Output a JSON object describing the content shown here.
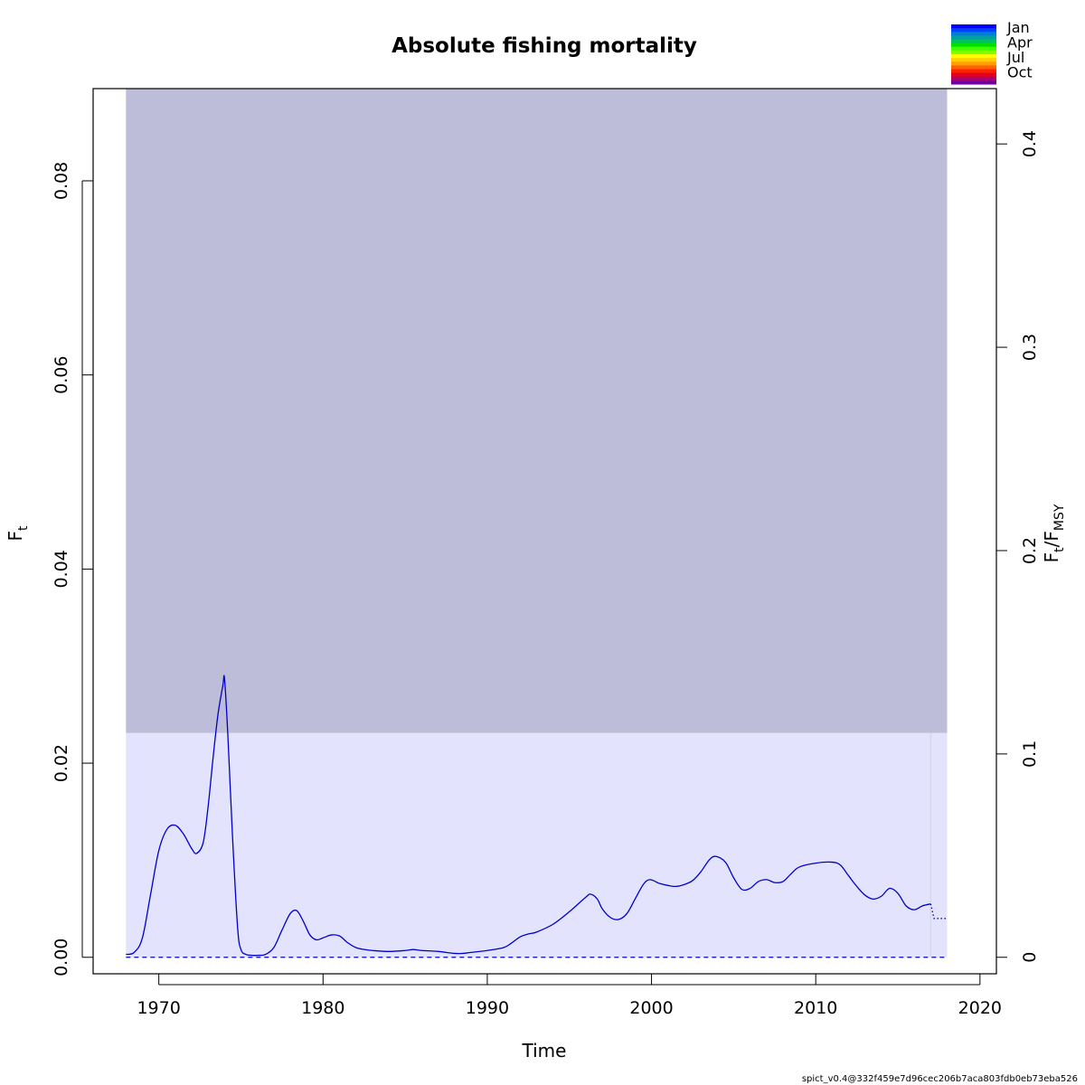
{
  "chart_data": {
    "type": "line",
    "title": "Absolute fishing mortality",
    "xlabel": "Time",
    "ylabel": "F",
    "ylabel_sub": "t",
    "ylabel_right": "F",
    "ylabel_right_sub1": "t",
    "ylabel_right_sep": "/F",
    "ylabel_right_sub2": "MSY",
    "xlim": [
      1966,
      2021
    ],
    "ylim": [
      -0.0017,
      0.0895
    ],
    "xticks": [
      1970,
      1980,
      1990,
      2000,
      2010,
      2020
    ],
    "xtick_labels": [
      "1970",
      "1980",
      "1990",
      "2000",
      "2010",
      "2020"
    ],
    "yticks": [
      0,
      0.02,
      0.04,
      0.06,
      0.08
    ],
    "ytick_labels": [
      "0.00",
      "0.02",
      "0.04",
      "0.06",
      "0.08"
    ],
    "right_ticks": [
      0,
      0.1,
      0.2,
      0.3,
      0.4
    ],
    "right_tick_labels": [
      "0",
      "0.1",
      "0.2",
      "0.3",
      "0.4"
    ],
    "right_axis_scale": 0.2095,
    "fmsy_band": {
      "x0": 1968,
      "x1": 2018,
      "lower": 0.0231,
      "upper": 0.0895,
      "color": "#bdbdd9"
    },
    "ci_band": {
      "x0": 1968,
      "x1": 2018,
      "lower": 0,
      "upper": 0.0231,
      "color": "#e3e3fd"
    },
    "fmsy_line": {
      "value": 0.0231,
      "color": "#bdbdd9"
    },
    "vertical_line": {
      "x": 2017,
      "color": "#d8d8d8"
    },
    "series": [
      {
        "style": "solid",
        "color": "#0000cd",
        "x": [
          1968,
          1968.5,
          1969,
          1969.5,
          1970,
          1970.5,
          1971,
          1971.5,
          1972,
          1972.3,
          1972.7,
          1973,
          1973.3,
          1973.6,
          1973.9,
          1974,
          1974.2,
          1974.5,
          1974.8,
          1975,
          1975.3,
          1975.7,
          1976,
          1976.5,
          1977,
          1977.5,
          1978,
          1978.4,
          1978.8,
          1979.2,
          1979.6,
          1980,
          1980.5,
          1981,
          1981.5,
          1982,
          1982.5,
          1983,
          1984,
          1985,
          1985.5,
          1986,
          1987,
          1988,
          1988.5,
          1989,
          1990,
          1991,
          1991.5,
          1992,
          1992.5,
          1993,
          1994,
          1995,
          1996,
          1996.3,
          1996.7,
          1997,
          1997.5,
          1998,
          1998.5,
          1999,
          1999.5,
          1999.9,
          2000.5,
          2001,
          2001.5,
          2002,
          2002.5,
          2003,
          2003.5,
          2003.9,
          2004.5,
          2005,
          2005.5,
          2006,
          2006.5,
          2007,
          2007.5,
          2008,
          2008.5,
          2009,
          2010,
          2011,
          2011.5,
          2012,
          2012.5,
          2013,
          2013.5,
          2014,
          2014.5,
          2015,
          2015.5,
          2016,
          2016.5,
          2017
        ],
        "y": [
          0.0003,
          0.0005,
          0.002,
          0.0065,
          0.011,
          0.0132,
          0.0136,
          0.0127,
          0.0112,
          0.0107,
          0.0118,
          0.0155,
          0.0205,
          0.025,
          0.028,
          0.0287,
          0.023,
          0.012,
          0.003,
          0.0008,
          0.0003,
          0.0002,
          0.0002,
          0.0003,
          0.001,
          0.0028,
          0.0045,
          0.0048,
          0.0037,
          0.0023,
          0.0018,
          0.002,
          0.0023,
          0.0022,
          0.0015,
          0.001,
          0.0008,
          0.0007,
          0.0006,
          0.0007,
          0.0008,
          0.0007,
          0.0006,
          0.0004,
          0.0004,
          0.0005,
          0.0007,
          0.001,
          0.0015,
          0.0021,
          0.0024,
          0.0026,
          0.0034,
          0.0047,
          0.0062,
          0.0065,
          0.006,
          0.005,
          0.0041,
          0.0039,
          0.0045,
          0.006,
          0.0075,
          0.008,
          0.0076,
          0.0074,
          0.0073,
          0.0075,
          0.0079,
          0.0088,
          0.01,
          0.0104,
          0.0098,
          0.0082,
          0.007,
          0.0071,
          0.0078,
          0.008,
          0.0077,
          0.0078,
          0.0086,
          0.0093,
          0.0097,
          0.0098,
          0.0095,
          0.0084,
          0.0073,
          0.0064,
          0.006,
          0.0063,
          0.0071,
          0.0066,
          0.0053,
          0.0049,
          0.0053,
          0.0055
        ]
      },
      {
        "style": "dotted",
        "color": "#0000cd",
        "x": [
          2017,
          2017.2,
          2018
        ],
        "y": [
          0.0055,
          0.004,
          0.004
        ]
      },
      {
        "style": "dashed",
        "color": "#0000cd",
        "x": [
          1968,
          2018
        ],
        "y": [
          0,
          0
        ]
      }
    ],
    "legend": {
      "position": "top-right",
      "colors": [
        "#0000ff",
        "#0040ff",
        "#007fd0",
        "#00a0a0",
        "#00c060",
        "#00e000",
        "#40ff00",
        "#80ff00",
        "#ffff00",
        "#ffd000",
        "#ffa000",
        "#ff6000",
        "#ff2000",
        "#e00020",
        "#b00070",
        "#7000a0"
      ],
      "labels": [
        "Jan",
        "Apr",
        "Jul",
        "Oct"
      ]
    },
    "footer": "spict_v0.4@332f459e7d96cec206b7aca803fdb0eb73eba526"
  }
}
